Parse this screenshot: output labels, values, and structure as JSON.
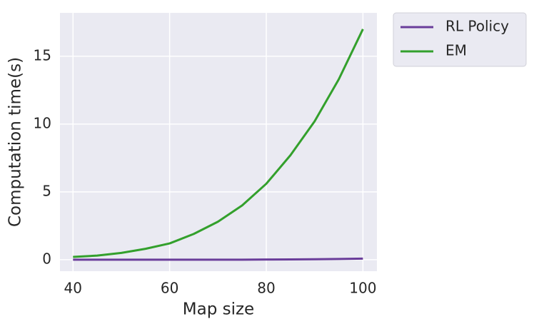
{
  "chart_data": {
    "type": "line",
    "x_label": "Map size",
    "y_label": "Computation time(s)",
    "x": [
      40,
      45,
      50,
      55,
      60,
      65,
      70,
      75,
      80,
      85,
      90,
      95,
      100
    ],
    "series": [
      {
        "name": "RL Policy",
        "color": "#6a3d9a",
        "values": [
          0,
          0,
          0,
          0,
          0,
          0,
          0,
          0,
          0.01,
          0.02,
          0.03,
          0.05,
          0.08
        ]
      },
      {
        "name": "EM",
        "color": "#33a02c",
        "values": [
          0.2,
          0.3,
          0.5,
          0.8,
          1.2,
          1.9,
          2.8,
          4.0,
          5.6,
          7.7,
          10.2,
          13.3,
          17.0
        ]
      }
    ],
    "xlim": [
      37.3,
      102.9
    ],
    "ylim": [
      -0.85,
      18.2
    ],
    "xticks": [
      40,
      60,
      80,
      100
    ],
    "yticks": [
      0,
      5,
      10,
      15
    ],
    "grid": true,
    "legend": "outside-upper-right"
  }
}
